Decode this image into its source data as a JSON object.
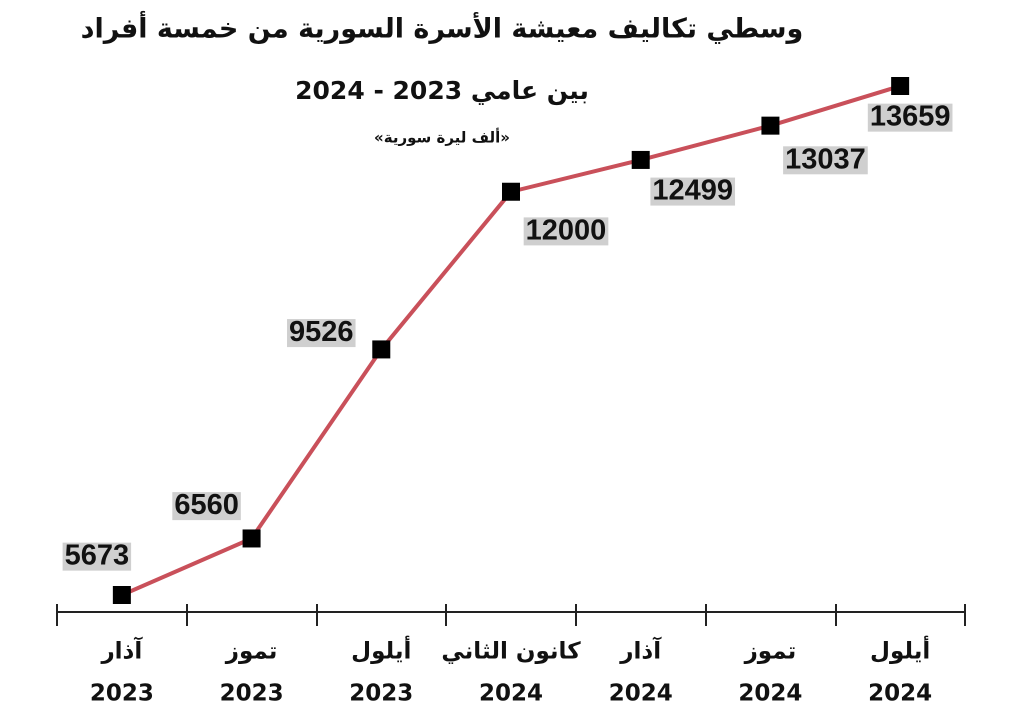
{
  "chart_data": {
    "type": "line",
    "title": "وسطي تكاليف معيشة الأسرة السورية من خمسة أفراد",
    "subtitle": "بين عامي 2023 - 2024",
    "unit_note": "«ألف ليرة سورية»",
    "categories": [
      [
        "آذار",
        "2023"
      ],
      [
        "تموز",
        "2023"
      ],
      [
        "أيلول",
        "2023"
      ],
      [
        "كانون الثاني",
        "2024"
      ],
      [
        "آذار",
        "2024"
      ],
      [
        "تموز",
        "2024"
      ],
      [
        "أيلول",
        "2024"
      ]
    ],
    "values": [
      5673,
      6560,
      9526,
      12000,
      12499,
      13037,
      13659
    ],
    "color": "#c9505a",
    "marker_color": "#000000"
  }
}
